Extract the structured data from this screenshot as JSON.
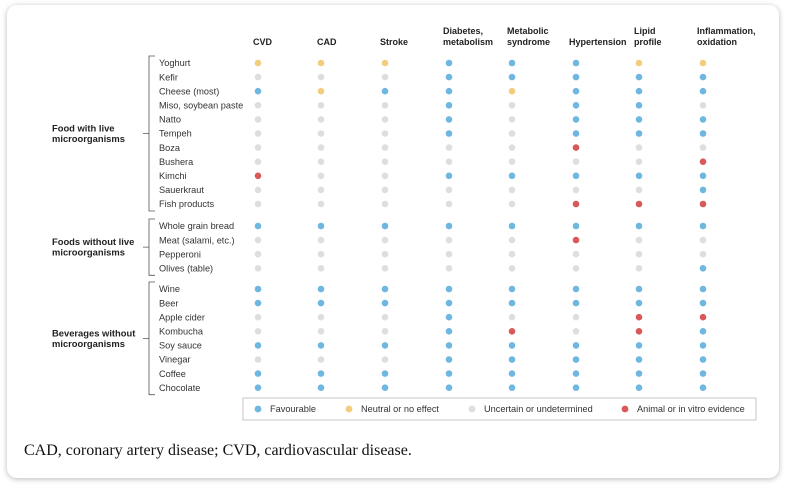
{
  "chart_data": {
    "type": "table",
    "columns": [
      {
        "lines": [
          "CVD"
        ]
      },
      {
        "lines": [
          "CAD"
        ]
      },
      {
        "lines": [
          "Stroke"
        ]
      },
      {
        "lines": [
          "Diabetes,",
          "metabolism"
        ]
      },
      {
        "lines": [
          "Metabolic",
          "syndrome"
        ]
      },
      {
        "lines": [
          "Hypertension"
        ]
      },
      {
        "lines": [
          "Lipid",
          "profile"
        ]
      },
      {
        "lines": [
          "Inflammation,",
          "oxidation"
        ]
      }
    ],
    "groups": [
      {
        "label_lines": [
          "Food with live",
          "microorganisms"
        ],
        "rows": [
          {
            "label": "Yoghurt",
            "values": [
              "N",
              "N",
              "N",
              "F",
              "F",
              "F",
              "N",
              "N"
            ]
          },
          {
            "label": "Kefir",
            "values": [
              "U",
              "U",
              "U",
              "F",
              "F",
              "F",
              "F",
              "F"
            ]
          },
          {
            "label": "Cheese (most)",
            "values": [
              "F",
              "N",
              "F",
              "F",
              "N",
              "F",
              "F",
              "F"
            ]
          },
          {
            "label": "Miso, soybean paste",
            "values": [
              "U",
              "U",
              "U",
              "F",
              "U",
              "F",
              "F",
              "U"
            ]
          },
          {
            "label": "Natto",
            "values": [
              "U",
              "U",
              "U",
              "F",
              "U",
              "F",
              "F",
              "F"
            ]
          },
          {
            "label": "Tempeh",
            "values": [
              "U",
              "U",
              "U",
              "F",
              "U",
              "F",
              "F",
              "F"
            ]
          },
          {
            "label": "Boza",
            "values": [
              "U",
              "U",
              "U",
              "U",
              "U",
              "A",
              "U",
              "U"
            ]
          },
          {
            "label": "Bushera",
            "values": [
              "U",
              "U",
              "U",
              "U",
              "U",
              "U",
              "U",
              "A"
            ]
          },
          {
            "label": "Kimchi",
            "values": [
              "A",
              "U",
              "U",
              "F",
              "F",
              "F",
              "F",
              "F"
            ]
          },
          {
            "label": "Sauerkraut",
            "values": [
              "U",
              "U",
              "U",
              "U",
              "U",
              "U",
              "U",
              "F"
            ]
          },
          {
            "label": "Fish products",
            "values": [
              "U",
              "U",
              "U",
              "U",
              "U",
              "A",
              "A",
              "A"
            ]
          }
        ]
      },
      {
        "label_lines": [
          "Foods without live",
          "microorganisms"
        ],
        "rows": [
          {
            "label": "Whole grain bread",
            "values": [
              "F",
              "F",
              "F",
              "F",
              "F",
              "F",
              "F",
              "F"
            ]
          },
          {
            "label": "Meat (salami, etc.)",
            "values": [
              "U",
              "U",
              "U",
              "U",
              "U",
              "A",
              "U",
              "U"
            ]
          },
          {
            "label": "Pepperoni",
            "values": [
              "U",
              "U",
              "U",
              "U",
              "U",
              "U",
              "U",
              "U"
            ]
          },
          {
            "label": "Olives (table)",
            "values": [
              "U",
              "U",
              "U",
              "U",
              "U",
              "U",
              "U",
              "F"
            ]
          }
        ]
      },
      {
        "label_lines": [
          "Beverages without",
          "microorganisms"
        ],
        "rows": [
          {
            "label": "Wine",
            "values": [
              "F",
              "F",
              "F",
              "F",
              "F",
              "F",
              "F",
              "F"
            ]
          },
          {
            "label": "Beer",
            "values": [
              "F",
              "F",
              "F",
              "F",
              "F",
              "F",
              "F",
              "F"
            ]
          },
          {
            "label": "Apple cider",
            "values": [
              "U",
              "U",
              "U",
              "F",
              "U",
              "U",
              "A",
              "A"
            ]
          },
          {
            "label": "Kombucha",
            "values": [
              "U",
              "U",
              "U",
              "F",
              "A",
              "U",
              "A",
              "F"
            ]
          },
          {
            "label": "Soy sauce",
            "values": [
              "F",
              "F",
              "F",
              "F",
              "F",
              "F",
              "F",
              "F"
            ]
          },
          {
            "label": "Vinegar",
            "values": [
              "U",
              "U",
              "U",
              "F",
              "F",
              "F",
              "F",
              "F"
            ]
          },
          {
            "label": "Coffee",
            "values": [
              "F",
              "F",
              "F",
              "F",
              "F",
              "F",
              "F",
              "F"
            ]
          },
          {
            "label": "Chocolate",
            "values": [
              "F",
              "F",
              "F",
              "F",
              "F",
              "F",
              "F",
              "F"
            ]
          }
        ]
      }
    ],
    "legend": [
      {
        "code": "F",
        "label": "Favourable",
        "color": "#6db7e0"
      },
      {
        "code": "N",
        "label": "Neutral or no effect",
        "color": "#f2cd7e"
      },
      {
        "code": "U",
        "label": "Uncertain or undetermined",
        "color": "#dedede"
      },
      {
        "code": "A",
        "label": "Animal or in vitro evidence",
        "color": "#d9595a"
      }
    ],
    "legend_position": "bottom"
  },
  "caption": "CAD, coronary artery disease; CVD, cardiovascular disease."
}
